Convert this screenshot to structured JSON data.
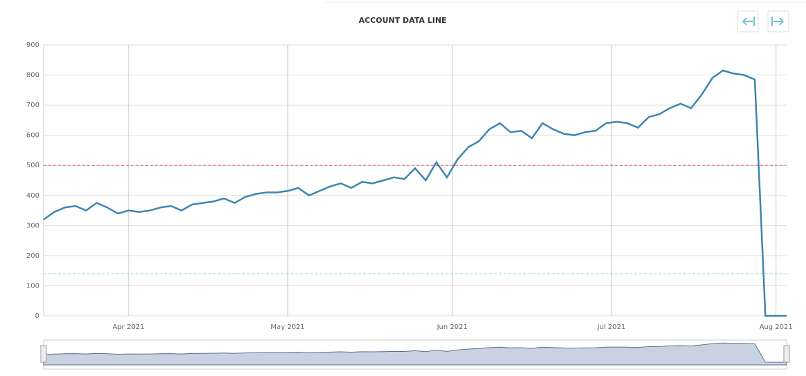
{
  "chart_data": {
    "type": "line",
    "title": "ACCOUNT DATA LINE",
    "values": [
      320,
      345,
      360,
      365,
      350,
      375,
      360,
      340,
      350,
      345,
      350,
      360,
      365,
      350,
      370,
      375,
      380,
      390,
      375,
      395,
      405,
      410,
      410,
      415,
      425,
      400,
      415,
      430,
      440,
      425,
      445,
      440,
      450,
      460,
      455,
      490,
      450,
      510,
      460,
      520,
      560,
      580,
      620,
      640,
      610,
      615,
      590,
      640,
      620,
      605,
      600,
      610,
      615,
      640,
      645,
      640,
      625,
      660,
      670,
      690,
      705,
      690,
      735,
      790,
      815,
      805,
      800,
      785,
      0,
      0,
      0
    ],
    "color": "#3d85b0",
    "xlim": [
      0,
      70
    ],
    "xticks": [
      {
        "value": 8,
        "label": "Apr 2021"
      },
      {
        "value": 23,
        "label": "May 2021"
      },
      {
        "value": 38.5,
        "label": "Jun 2021"
      },
      {
        "value": 53.5,
        "label": "Jul 2021"
      },
      {
        "value": 69,
        "label": "Aug 2021"
      }
    ],
    "ylim": [
      0,
      900
    ],
    "yticks": [
      0,
      100,
      200,
      300,
      400,
      500,
      600,
      700,
      800,
      900
    ],
    "grid": true,
    "plot_lines": [
      {
        "value": 500,
        "color": "#e06666"
      },
      {
        "value": 140,
        "color": "#8fd6d6"
      }
    ]
  }
}
